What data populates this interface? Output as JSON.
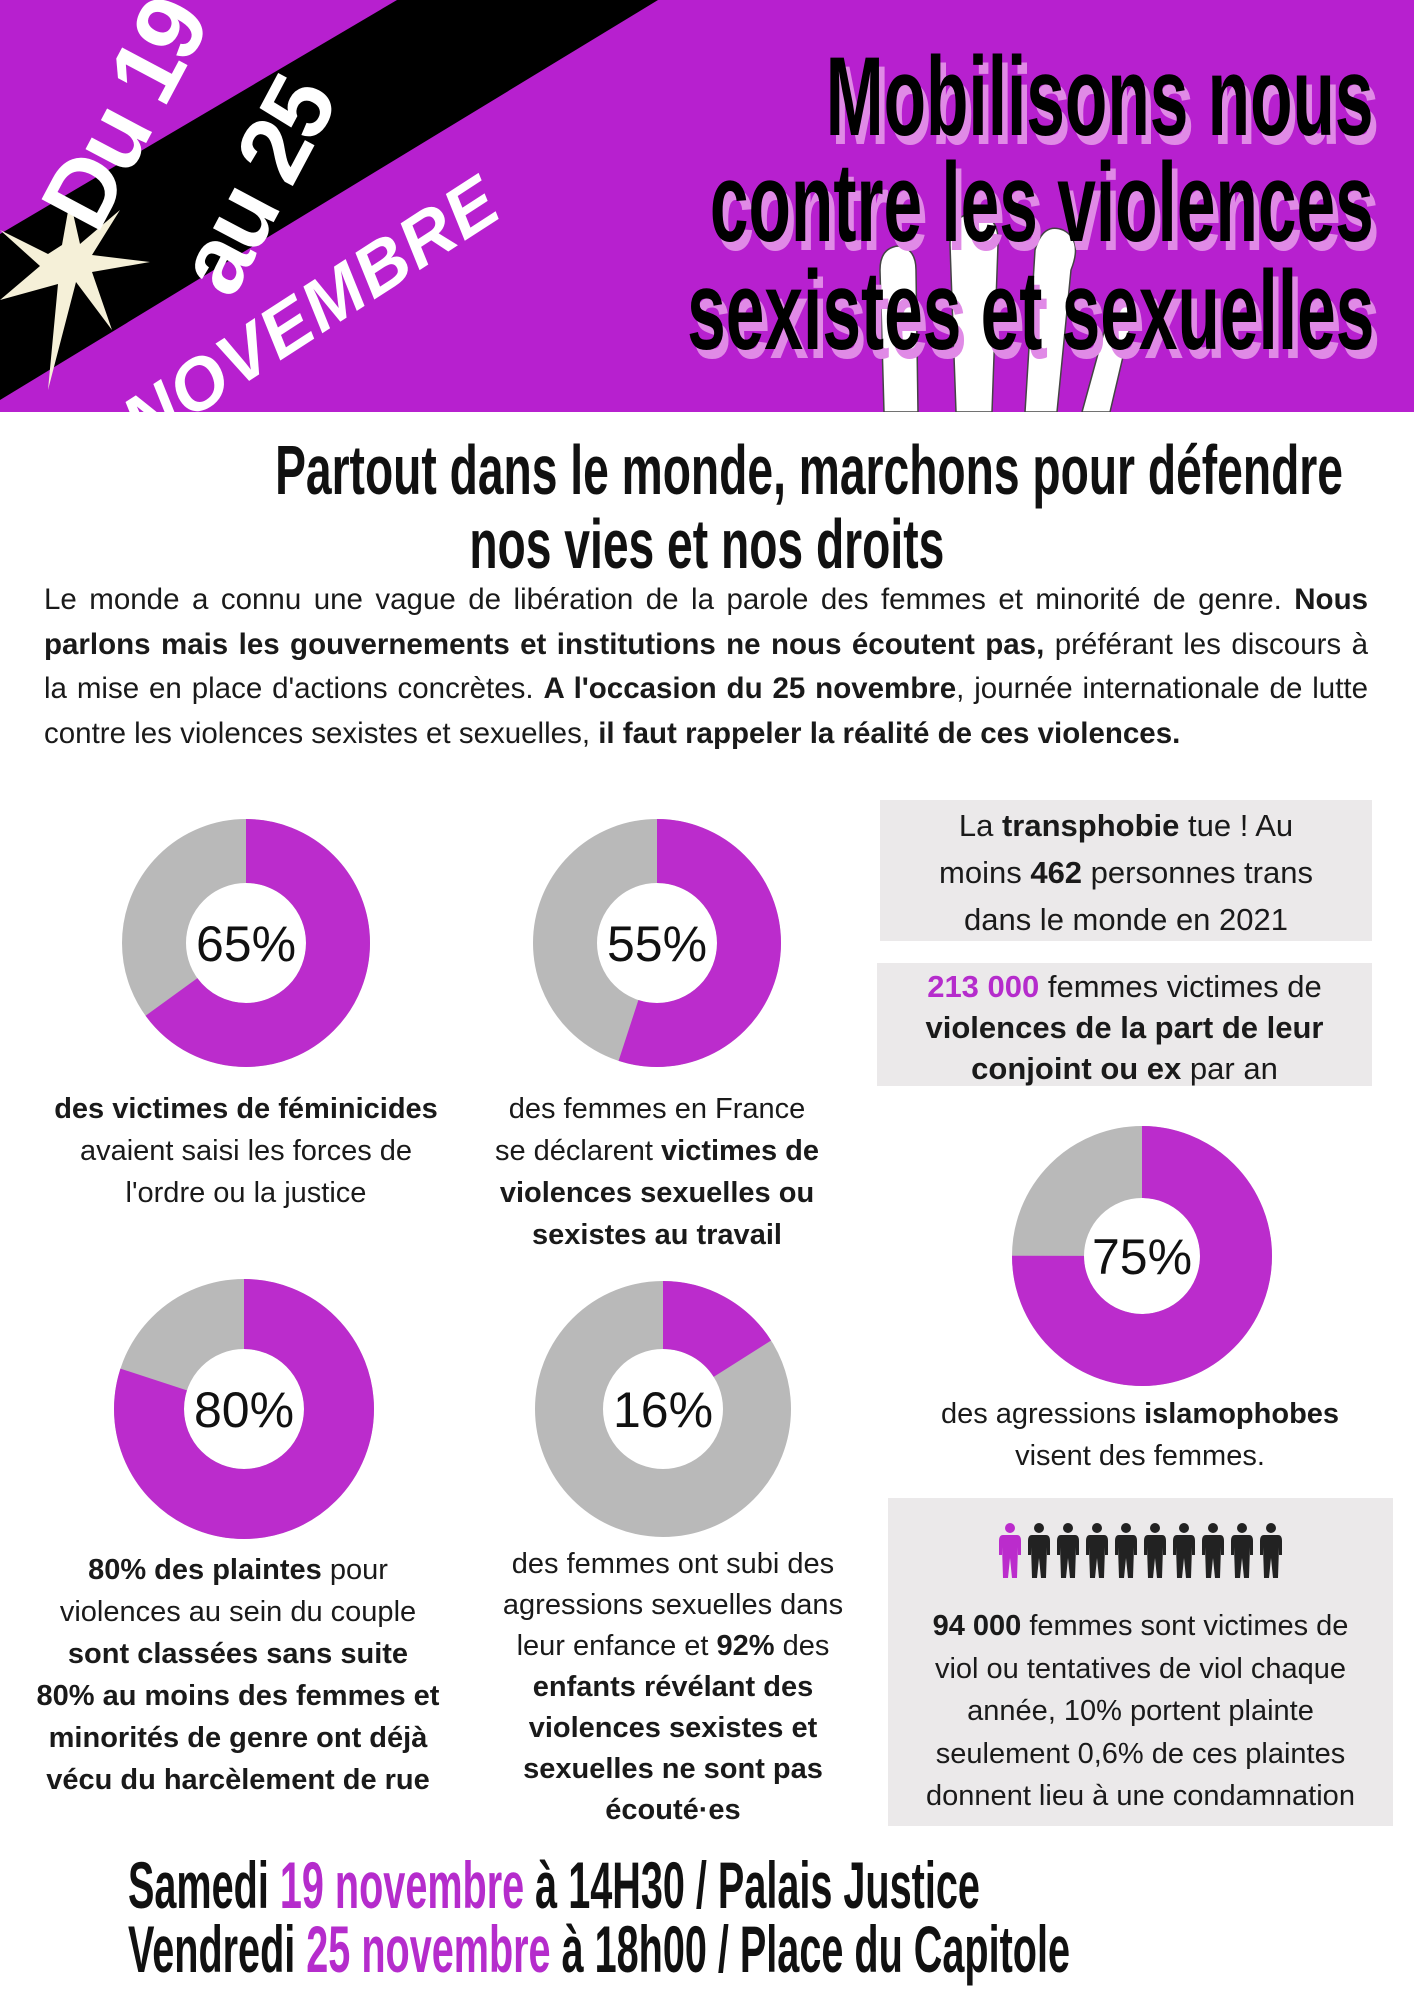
{
  "header": {
    "date_line1": "Du 19",
    "date_line2": "au 25",
    "month": "NOVEMBRE",
    "title_lines": [
      "Mobilisons nous",
      "contre les violences",
      "sexistes et sexuelles"
    ],
    "colors": {
      "background": "#b720cf",
      "band": "#000000",
      "starburst": "#f5f0d8",
      "title_shadow": "#e08ae6"
    }
  },
  "headline": [
    "Partout dans le monde, marchons pour défendre",
    "nos vies et nos droits"
  ],
  "intro": [
    {
      "t": "Le monde a connu une vague de libération de la parole des femmes et minorité de genre. ",
      "b": false
    },
    {
      "t": "Nous parlons mais les gouvernements et institutions ne nous écoutent pas,",
      "b": true
    },
    {
      "t": " préférant les discours à la mise en place d'actions concrètes. ",
      "b": false
    },
    {
      "t": "A l'occasion du 25 novembre",
      "b": true
    },
    {
      "t": ", journée internationale de lutte contre les violences sexistes et sexuelles, ",
      "b": false
    },
    {
      "t": "il faut rappeler la réalité de ces violences.",
      "b": true
    }
  ],
  "chart_data": [
    {
      "type": "pie",
      "variant": "donut",
      "label": "65%",
      "values": [
        65,
        35
      ],
      "colors": [
        "#bb2ccc",
        "#b9b9b9"
      ]
    },
    {
      "type": "pie",
      "variant": "donut",
      "label": "55%",
      "values": [
        55,
        45
      ],
      "colors": [
        "#bb2ccc",
        "#b9b9b9"
      ]
    },
    {
      "type": "pie",
      "variant": "donut",
      "label": "75%",
      "values": [
        75,
        25
      ],
      "colors": [
        "#bb2ccc",
        "#b9b9b9"
      ]
    },
    {
      "type": "pie",
      "variant": "donut",
      "label": "80%",
      "values": [
        80,
        20
      ],
      "colors": [
        "#bb2ccc",
        "#b9b9b9"
      ]
    },
    {
      "type": "pie",
      "variant": "donut",
      "label": "16%",
      "values": [
        16,
        84
      ],
      "colors": [
        "#bb2ccc",
        "#b9b9b9"
      ]
    }
  ],
  "captions": {
    "c1": [
      [
        [
          "des victimes de féminicides",
          true
        ]
      ],
      [
        [
          "avaient saisi les forces de",
          false
        ]
      ],
      [
        [
          "l'ordre ou la justice",
          false
        ]
      ]
    ],
    "c2": [
      [
        [
          "des femmes en France",
          false
        ]
      ],
      [
        [
          "se déclarent ",
          false
        ],
        [
          "victimes de",
          true
        ]
      ],
      [
        [
          "violences sexuelles ou",
          true
        ]
      ],
      [
        [
          "sexistes au travail",
          true
        ]
      ]
    ],
    "c3": [
      [
        [
          "des agressions ",
          false
        ],
        [
          "islamophobes",
          true
        ]
      ],
      [
        [
          "visent des femmes.",
          false
        ]
      ]
    ],
    "c4": [
      [
        [
          "80% des plaintes",
          true
        ],
        [
          " pour",
          false
        ]
      ],
      [
        [
          "violences au sein du couple",
          false
        ]
      ],
      [
        [
          "sont classées sans suite",
          true
        ]
      ],
      [
        [
          "80% au moins des femmes et",
          true
        ]
      ],
      [
        [
          "minorités de genre ont déjà",
          true
        ]
      ],
      [
        [
          "vécu du harcèlement de rue",
          true
        ]
      ]
    ],
    "c5": [
      [
        [
          "des femmes ont subi des",
          false
        ]
      ],
      [
        [
          "agressions sexuelles dans",
          false
        ]
      ],
      [
        [
          "leur enfance et ",
          false
        ],
        [
          "92%",
          true
        ],
        [
          " des",
          false
        ]
      ],
      [
        [
          "enfants révélant des",
          true
        ]
      ],
      [
        [
          "violences sexistes et",
          true
        ]
      ],
      [
        [
          "sexuelles ne sont pas",
          true
        ]
      ],
      [
        [
          "écouté·es",
          true
        ]
      ]
    ]
  },
  "boxes": {
    "b1": [
      [
        [
          "La ",
          false
        ],
        [
          "transphobie",
          true
        ],
        [
          " tue ! Au",
          false
        ]
      ],
      [
        [
          "moins ",
          false
        ],
        [
          "462",
          true
        ],
        [
          " personnes trans",
          false
        ]
      ],
      [
        [
          "dans le monde en 2021",
          false
        ]
      ]
    ],
    "b2": [
      [
        [
          "213 000",
          true,
          "p"
        ],
        [
          " femmes victimes de",
          false
        ]
      ],
      [
        [
          "violences de la part de leur",
          true
        ]
      ],
      [
        [
          "conjoint ou ex",
          true
        ],
        [
          " par an",
          false
        ]
      ]
    ],
    "b3": [
      [
        [
          "94 000",
          true
        ],
        [
          " femmes sont victimes de",
          false
        ]
      ],
      [
        [
          "viol ou tentatives de viol chaque",
          false
        ]
      ],
      [
        [
          "année, 10% portent plainte",
          false
        ]
      ],
      [
        [
          "seulement 0,6% de ces plaintes",
          false
        ]
      ],
      [
        [
          "donnent lieu à une condamnation",
          false
        ]
      ]
    ],
    "people_icons": {
      "total": 10,
      "highlighted": 1,
      "icon": "person-icon",
      "highlight_color": "#bb2ccc",
      "color": "#222222"
    }
  },
  "events": [
    [
      [
        "Samedi ",
        false
      ],
      [
        "19 novembre",
        true
      ],
      [
        " à 14H30 / Palais Justice",
        false
      ]
    ],
    [
      [
        "Vendredi ",
        false
      ],
      [
        "25 novembre",
        true
      ],
      [
        " à 18h00 / Place du Capitole",
        false
      ]
    ]
  ]
}
